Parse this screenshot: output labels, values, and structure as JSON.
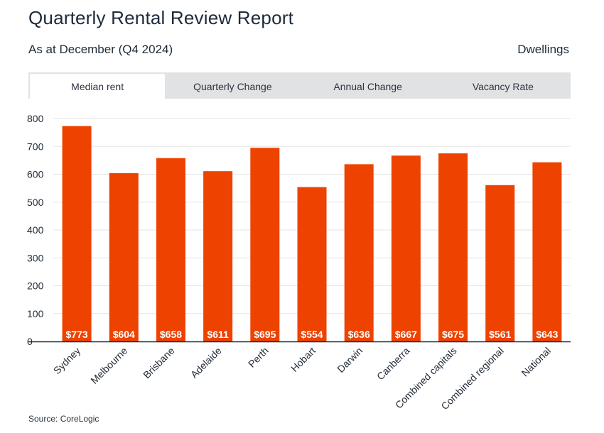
{
  "header": {
    "title": "Quarterly Rental Review Report",
    "subtitle": "As at December (Q4 2024)",
    "dwelling_label": "Dwellings"
  },
  "tabs": [
    {
      "label": "Median rent",
      "active": true
    },
    {
      "label": "Quarterly Change",
      "active": false
    },
    {
      "label": "Annual Change",
      "active": false
    },
    {
      "label": "Vacancy Rate",
      "active": false
    }
  ],
  "chart_data": {
    "type": "bar",
    "title": "",
    "xlabel": "",
    "ylabel": "",
    "categories": [
      "Sydney",
      "Melbourne",
      "Brisbane",
      "Adelaide",
      "Perth",
      "Hobart",
      "Darwin",
      "Canberra",
      "Combined capitals",
      "Combined regional",
      "National"
    ],
    "values": [
      773,
      604,
      658,
      611,
      695,
      554,
      636,
      667,
      675,
      561,
      643
    ],
    "data_labels": [
      "$773",
      "$604",
      "$658",
      "$611",
      "$695",
      "$554",
      "$636",
      "$667",
      "$675",
      "$561",
      "$643"
    ],
    "ylim": [
      0,
      800
    ],
    "yticks": [
      0,
      100,
      200,
      300,
      400,
      500,
      600,
      700,
      800
    ],
    "grid": true,
    "bar_color": "#ee4200",
    "label_color": "#ffffff"
  },
  "footer": {
    "source": "Source: CoreLogic"
  }
}
